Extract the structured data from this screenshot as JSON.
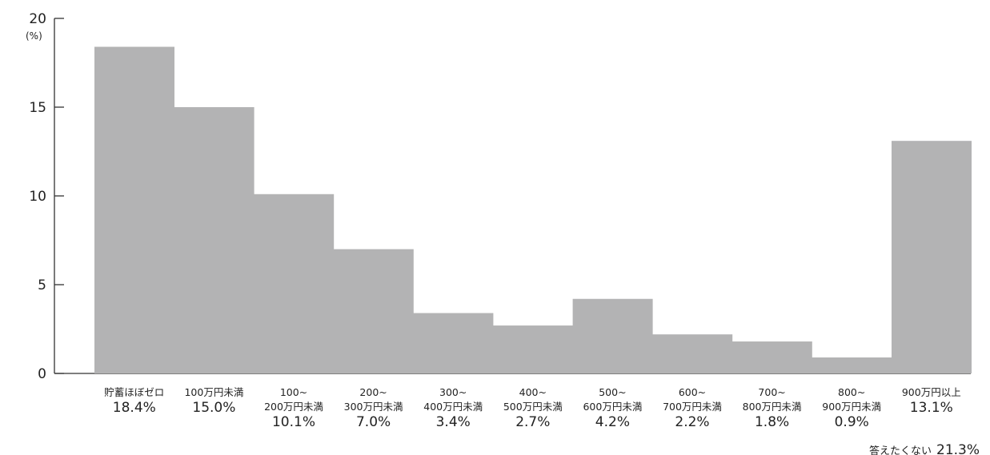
{
  "chart_data": {
    "type": "bar",
    "unit_label": "(%)",
    "ylim": [
      0,
      20
    ],
    "yticks": [
      0,
      5,
      10,
      15,
      20
    ],
    "bar_color": "#b3b3b4",
    "grid": false,
    "categories": [
      {
        "lines": [
          "貯蓄ほぼゼロ"
        ],
        "value_label": "18.4%"
      },
      {
        "lines": [
          "100万円未満"
        ],
        "value_label": "15.0%"
      },
      {
        "lines": [
          "100~",
          "200万円未満"
        ],
        "value_label": "10.1%"
      },
      {
        "lines": [
          "200~",
          "300万円未満"
        ],
        "value_label": "7.0%"
      },
      {
        "lines": [
          "300~",
          "400万円未満"
        ],
        "value_label": "3.4%"
      },
      {
        "lines": [
          "400~",
          "500万円未満"
        ],
        "value_label": "2.7%"
      },
      {
        "lines": [
          "500~",
          "600万円未満"
        ],
        "value_label": "4.2%"
      },
      {
        "lines": [
          "600~",
          "700万円未満"
        ],
        "value_label": "2.2%"
      },
      {
        "lines": [
          "700~",
          "800万円未満"
        ],
        "value_label": "1.8%"
      },
      {
        "lines": [
          "800~",
          "900万円未満"
        ],
        "value_label": "0.9%"
      },
      {
        "lines": [
          "900万円以上"
        ],
        "value_label": "13.1%"
      }
    ],
    "values": [
      18.4,
      15.0,
      10.1,
      7.0,
      3.4,
      2.7,
      4.2,
      2.2,
      1.8,
      0.9,
      13.1
    ],
    "note": {
      "label": "答えたくない",
      "value_label": "21.3%"
    }
  }
}
